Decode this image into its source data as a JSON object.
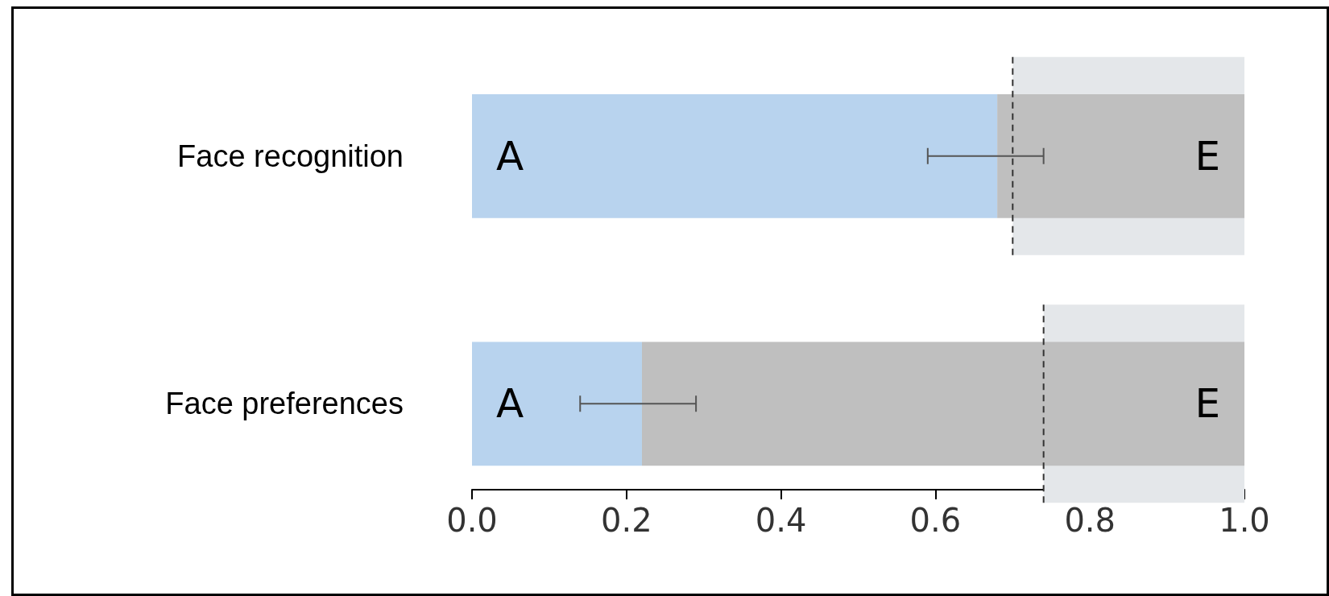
{
  "chart_data": {
    "type": "bar",
    "orientation": "horizontal",
    "stacked": true,
    "legend": false,
    "grid": false,
    "categories": [
      "Face recognition",
      "Face preferences"
    ],
    "series": [
      {
        "name": "A",
        "color": "#b8d3ee",
        "values": [
          0.68,
          0.22
        ],
        "errors": [
          [
            0.59,
            0.74
          ],
          [
            0.14,
            0.29
          ]
        ]
      },
      {
        "name": "E",
        "color": "#bfbfbf",
        "values": [
          0.32,
          0.78
        ]
      }
    ],
    "xlim": [
      0,
      1
    ],
    "xticks": [
      {
        "value": 0,
        "label": "0.0"
      },
      {
        "value": 0.2,
        "label": "0.2"
      },
      {
        "value": 0.4,
        "label": "0.4"
      },
      {
        "value": 0.6,
        "label": "0.6"
      },
      {
        "value": 0.8,
        "label": "0.8"
      },
      {
        "value": 1,
        "label": "1.0"
      }
    ],
    "ref_lines": [
      {
        "axis": "x",
        "value": 0.7,
        "color": "#333333",
        "line_style": "dashed"
      },
      {
        "axis": "x",
        "value": 0.74,
        "color": "#333333",
        "line_style": "dashed"
      }
    ],
    "bands": [
      {
        "axis": "x",
        "from": 0.7,
        "to": 1.0,
        "color": "#e4e7ea"
      },
      {
        "axis": "x",
        "from": 0.74,
        "to": 1.0,
        "color": "#e4e7ea"
      }
    ]
  }
}
